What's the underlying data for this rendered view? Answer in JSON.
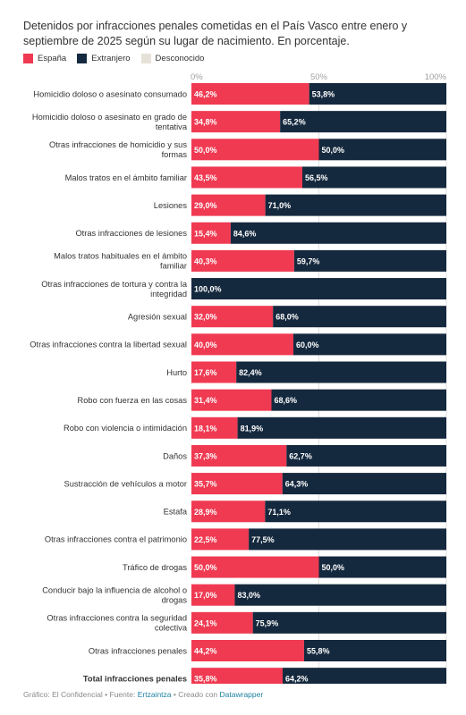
{
  "chart_data": {
    "type": "bar",
    "stacked": true,
    "orientation": "horizontal",
    "title": "Detenidos por infracciones penales cometidas en el País Vasco entre enero y septiembre de 2025 según su lugar de nacimiento. En porcentaje.",
    "xlim": [
      0,
      100
    ],
    "ticks": [
      "0%",
      "50%",
      "100%"
    ],
    "legend_placement": "top-left",
    "series": [
      {
        "name": "España",
        "color": "#f03a52",
        "values": [
          46.2,
          34.8,
          50.0,
          43.5,
          29.0,
          15.4,
          40.3,
          0,
          32.0,
          40.0,
          17.6,
          31.4,
          18.1,
          37.3,
          35.7,
          28.9,
          22.5,
          50.0,
          17.0,
          24.1,
          44.2,
          35.8
        ],
        "labels": [
          "46,2%",
          "34,8%",
          "50,0%",
          "43,5%",
          "29,0%",
          "15,4%",
          "40,3%",
          "",
          "32,0%",
          "40,0%",
          "17,6%",
          "31,4%",
          "18,1%",
          "37,3%",
          "35,7%",
          "28,9%",
          "22,5%",
          "50,0%",
          "17,0%",
          "24,1%",
          "44,2%",
          "35,8%"
        ]
      },
      {
        "name": "Extranjero",
        "color": "#15293e",
        "values": [
          53.8,
          65.2,
          50.0,
          56.5,
          71.0,
          84.6,
          59.7,
          100.0,
          68.0,
          60.0,
          82.4,
          68.6,
          81.9,
          62.7,
          64.3,
          71.1,
          77.5,
          50.0,
          83.0,
          75.9,
          55.8,
          64.2
        ],
        "labels": [
          "53,8%",
          "65,2%",
          "50,0%",
          "56,5%",
          "71,0%",
          "84,6%",
          "59,7%",
          "100,0%",
          "68,0%",
          "60,0%",
          "82,4%",
          "68,6%",
          "81,9%",
          "62,7%",
          "64,3%",
          "71,1%",
          "77,5%",
          "50,0%",
          "83,0%",
          "75,9%",
          "55,8%",
          "64,2%"
        ]
      },
      {
        "name": "Desconocido",
        "color": "#e6e2da",
        "values": [
          0,
          0,
          0,
          0,
          0,
          0,
          0,
          0,
          0,
          0,
          0,
          0,
          0,
          0,
          0,
          0,
          0,
          0,
          0,
          0,
          0,
          0
        ],
        "labels": []
      }
    ],
    "categories": [
      [
        "Homicidio doloso o asesinato consumado"
      ],
      [
        "Homicidio doloso o asesinato en grado de",
        "tentativa"
      ],
      [
        "Otras infracciones de homicidio y sus",
        "formas"
      ],
      [
        "Malos tratos en el ámbito familiar"
      ],
      [
        "Lesiones"
      ],
      [
        "Otras infracciones de lesiones"
      ],
      [
        "Malos tratos habituales en el ámbito",
        "familiar"
      ],
      [
        "Otras infracciones de tortura y contra la",
        "integridad"
      ],
      [
        "Agresión sexual"
      ],
      [
        "Otras infracciones contra la libertad sexual"
      ],
      [
        "Hurto"
      ],
      [
        "Robo con fuerza en las cosas"
      ],
      [
        "Robo con violencia o intimidación"
      ],
      [
        "Daños"
      ],
      [
        "Sustracción de vehículos a motor"
      ],
      [
        "Estafa"
      ],
      [
        "Otras infracciones contra el patrimonio"
      ],
      [
        "Tráfico de drogas"
      ],
      [
        "Conducir bajo la influencia de alcohol o",
        "drogas"
      ],
      [
        "Otras infracciones contra la seguridad",
        "colectiva"
      ],
      [
        "Otras infracciones penales"
      ],
      [
        "Total infracciones penales"
      ]
    ],
    "bold_category_index": 21
  },
  "footer": {
    "prefix": "Gráfico: El Confidencial • Fuente: ",
    "source": "Ertzaintza",
    "middle": " • Creado con ",
    "tool": "Datawrapper"
  }
}
